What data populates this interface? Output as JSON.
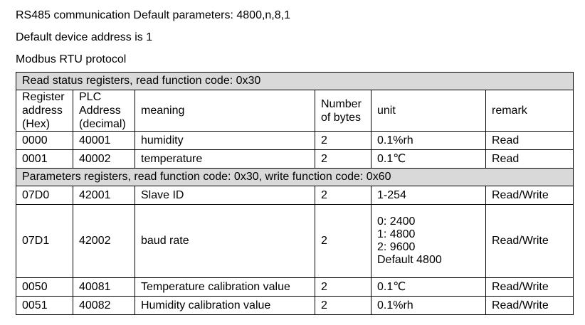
{
  "intro": {
    "line1": "RS485 communication Default parameters: 4800,n,8,1",
    "line2": "Default device address is 1",
    "line3": "Modbus RTU protocol"
  },
  "table": {
    "section1_title": "Read status registers, read function code: 0x30",
    "section2_title": "Parameters registers, read function code: 0x30, write function code: 0x60",
    "headers": {
      "register_address": [
        "Register",
        "address",
        "(Hex)"
      ],
      "plc_address": [
        "PLC",
        "Address",
        "(decimal)"
      ],
      "meaning": "meaning",
      "bytes": [
        "Number",
        "of bytes"
      ],
      "unit": "unit",
      "remark": "remark"
    },
    "status_rows": [
      {
        "hex": "0000",
        "plc": "40001",
        "meaning": "humidity",
        "bytes": "2",
        "unit": "0.1%rh",
        "remark": "Read"
      },
      {
        "hex": "0001",
        "plc": "40002",
        "meaning": "temperature",
        "bytes": "2",
        "unit": "0.1℃",
        "remark": "Read"
      }
    ],
    "param_rows": [
      {
        "hex": "07D0",
        "plc": "42001",
        "meaning": "Slave ID",
        "bytes": "2",
        "unit": "1-254",
        "remark": "Read/Write"
      },
      {
        "hex": "07D1",
        "plc": "42002",
        "meaning": "baud rate",
        "bytes": "2",
        "unit": [
          "0: 2400",
          "1: 4800",
          "2: 9600",
          "Default 4800"
        ],
        "remark": "Read/Write"
      },
      {
        "hex": "0050",
        "plc": "40081",
        "meaning": "Temperature calibration value",
        "bytes": "2",
        "unit": "0.1℃",
        "remark": "Read/Write"
      },
      {
        "hex": "0051",
        "plc": "40082",
        "meaning": "Humidity calibration value",
        "bytes": "2",
        "unit": "0.1%rh",
        "remark": "Read/Write"
      }
    ]
  }
}
